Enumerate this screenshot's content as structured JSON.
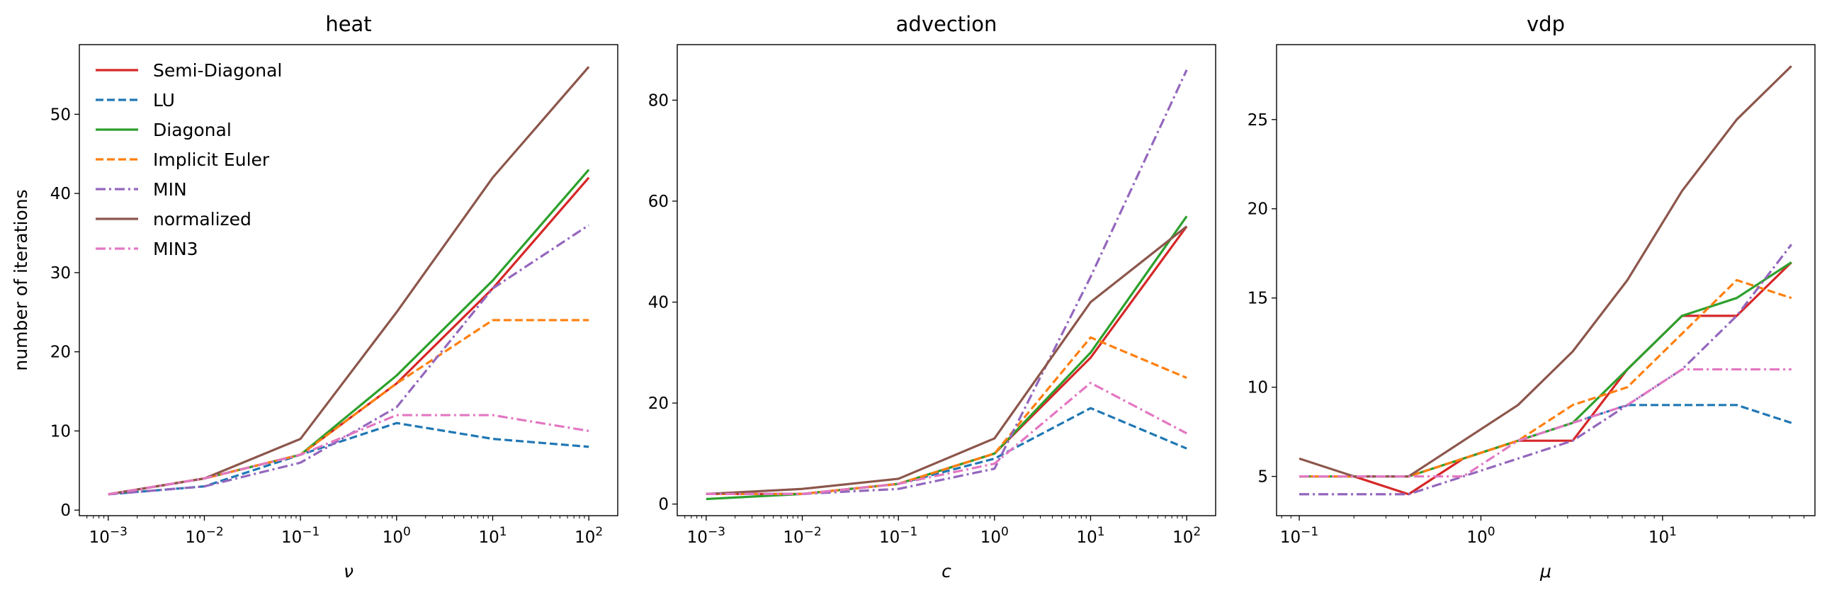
{
  "colors": {
    "Semi-Diagonal": "#d62728",
    "LU": "#1f77b4",
    "Diagonal": "#2ca02c",
    "Implicit Euler": "#ff7f0e",
    "MIN": "#9467bd",
    "normalized": "#8c564b",
    "MIN3": "#e377c2"
  },
  "legend": {
    "placement": "upper-left",
    "entries": [
      "Semi-Diagonal",
      "LU",
      "Diagonal",
      "Implicit Euler",
      "MIN",
      "normalized",
      "MIN3"
    ]
  },
  "chart_data": [
    {
      "type": "line",
      "title": "heat",
      "xlabel": "ν",
      "ylabel": "number of iterations",
      "xscale": "log",
      "xticks": [
        "10−3",
        "10−2",
        "10−1",
        "100",
        "101",
        "102"
      ],
      "yticks": [
        "0",
        "10",
        "20",
        "30",
        "40",
        "50"
      ],
      "xlim": [
        0.0005,
        200
      ],
      "ylim": [
        -0.7,
        58.8
      ],
      "x": [
        0.001,
        0.01,
        0.1,
        1,
        10,
        100
      ],
      "series": [
        {
          "name": "Semi-Diagonal",
          "style": "solid",
          "values": [
            2,
            4,
            7,
            16,
            28,
            42
          ]
        },
        {
          "name": "LU",
          "style": "dashed",
          "values": [
            2,
            3,
            7,
            11,
            9,
            8
          ]
        },
        {
          "name": "Diagonal",
          "style": "solid",
          "values": [
            2,
            4,
            7,
            17,
            29,
            43
          ]
        },
        {
          "name": "Implicit Euler",
          "style": "dashed",
          "values": [
            2,
            4,
            7,
            16,
            24,
            24
          ]
        },
        {
          "name": "MIN",
          "style": "dashdot",
          "values": [
            2,
            3,
            6,
            13,
            28,
            36
          ]
        },
        {
          "name": "normalized",
          "style": "solid",
          "values": [
            2,
            4,
            9,
            25,
            42,
            56
          ]
        },
        {
          "name": "MIN3",
          "style": "dashdot",
          "values": [
            2,
            4,
            7,
            12,
            12,
            10
          ]
        }
      ]
    },
    {
      "type": "line",
      "title": "advection",
      "xlabel": "c",
      "ylabel": "",
      "xscale": "log",
      "xticks": [
        "10−3",
        "10−2",
        "10−1",
        "100",
        "101",
        "102"
      ],
      "yticks": [
        "0",
        "20",
        "40",
        "60",
        "80"
      ],
      "xlim": [
        0.0005,
        200
      ],
      "ylim": [
        -2.3,
        91
      ],
      "x": [
        0.001,
        0.01,
        0.1,
        1,
        10,
        100
      ],
      "series": [
        {
          "name": "Semi-Diagonal",
          "style": "solid",
          "values": [
            2,
            2,
            4,
            10,
            29,
            55
          ]
        },
        {
          "name": "LU",
          "style": "dashed",
          "values": [
            2,
            2,
            4,
            9,
            19,
            11
          ]
        },
        {
          "name": "Diagonal",
          "style": "solid",
          "values": [
            1,
            2,
            4,
            10,
            30,
            57
          ]
        },
        {
          "name": "Implicit Euler",
          "style": "dashed",
          "values": [
            2,
            2,
            4,
            10,
            33,
            25
          ]
        },
        {
          "name": "MIN",
          "style": "dashdot",
          "values": [
            2,
            2,
            3,
            7,
            45,
            86
          ]
        },
        {
          "name": "normalized",
          "style": "solid",
          "values": [
            2,
            3,
            5,
            13,
            40,
            55
          ]
        },
        {
          "name": "MIN3",
          "style": "dashdot",
          "values": [
            2,
            2,
            4,
            8,
            24,
            14
          ]
        }
      ]
    },
    {
      "type": "line",
      "title": "vdp",
      "xlabel": "μ",
      "ylabel": "",
      "xscale": "log",
      "xticks": [
        "10−1",
        "100",
        "101"
      ],
      "yticks": [
        "5",
        "10",
        "15",
        "20",
        "25"
      ],
      "xlim": [
        0.075,
        69
      ],
      "ylim": [
        2.8,
        29.2
      ],
      "x": [
        0.1,
        0.2,
        0.4,
        0.8,
        1.6,
        3.2,
        6.4,
        12.8,
        25.6,
        51.2
      ],
      "series": [
        {
          "name": "Semi-Diagonal",
          "style": "solid",
          "values": [
            5,
            5,
            4,
            6,
            7,
            7,
            11,
            14,
            14,
            17
          ]
        },
        {
          "name": "LU",
          "style": "dashed",
          "values": [
            5,
            5,
            5,
            6,
            7,
            8,
            9,
            9,
            9,
            8
          ]
        },
        {
          "name": "Diagonal",
          "style": "solid",
          "values": [
            5,
            5,
            5,
            6,
            7,
            8,
            11,
            14,
            15,
            17
          ]
        },
        {
          "name": "Implicit Euler",
          "style": "dashed",
          "values": [
            5,
            5,
            5,
            6,
            7,
            9,
            10,
            13,
            16,
            15
          ]
        },
        {
          "name": "MIN",
          "style": "dashdot",
          "values": [
            4,
            4,
            4,
            5,
            6,
            7,
            9,
            11,
            14,
            18
          ]
        },
        {
          "name": "normalized",
          "style": "solid",
          "values": [
            6,
            5,
            5,
            7,
            9,
            12,
            16,
            21,
            25,
            28
          ]
        },
        {
          "name": "MIN3",
          "style": "dashdot",
          "values": [
            5,
            5,
            5,
            5,
            7,
            8,
            9,
            11,
            11,
            11
          ]
        }
      ]
    }
  ]
}
